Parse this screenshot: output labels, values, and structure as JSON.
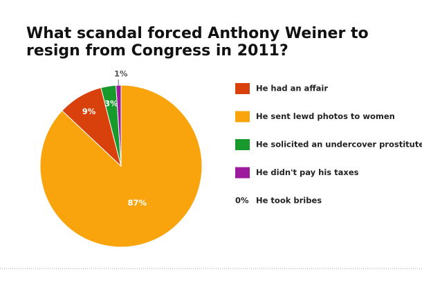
{
  "chart_data": {
    "type": "pie",
    "title": "What scandal forced Anthony Weiner to resign from Congress in 2011?",
    "categories": [
      "He had an affair",
      "He sent lewd photos to women",
      "He solicited an undercover prostitute",
      "He didn't pay his taxes",
      "He took bribes"
    ],
    "values": [
      9,
      87,
      3,
      1,
      0
    ],
    "value_labels": [
      "9%",
      "87%",
      "3%",
      "1%",
      "0%"
    ],
    "colors": [
      "#d9410c",
      "#f9a40c",
      "#17992b",
      "#9c1a9c",
      "#999999"
    ]
  }
}
